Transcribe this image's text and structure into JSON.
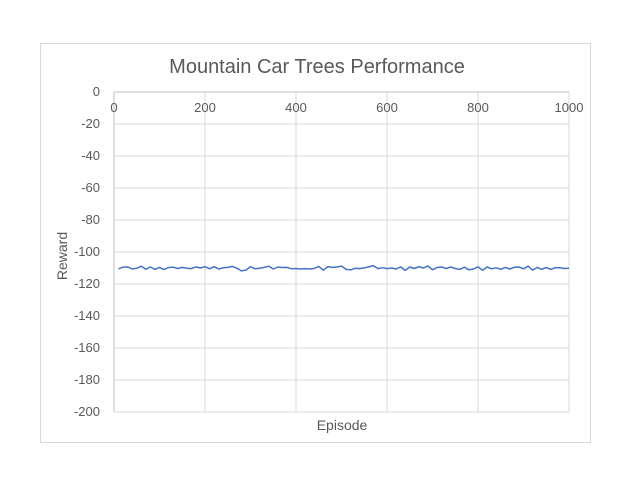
{
  "chart_data": {
    "type": "line",
    "title": "Mountain Car Trees Performance",
    "xlabel": "Episode",
    "ylabel": "Reward",
    "xlim": [
      0,
      1000
    ],
    "ylim": [
      -200,
      0
    ],
    "xticks": [
      0,
      200,
      400,
      600,
      800,
      1000
    ],
    "yticks": [
      0,
      -20,
      -40,
      -60,
      -80,
      -100,
      -120,
      -140,
      -160,
      -180,
      -200
    ],
    "x_axis_position": "top",
    "grid": true,
    "legend": "none",
    "series": [
      {
        "color": "#4472c4",
        "x": [
          10,
          20,
          30,
          40,
          50,
          60,
          70,
          80,
          90,
          100,
          110,
          120,
          130,
          140,
          150,
          160,
          170,
          180,
          190,
          200,
          210,
          220,
          230,
          240,
          250,
          260,
          270,
          280,
          290,
          300,
          310,
          320,
          330,
          340,
          350,
          360,
          370,
          380,
          390,
          400,
          410,
          420,
          430,
          440,
          450,
          460,
          470,
          480,
          490,
          500,
          510,
          520,
          530,
          540,
          550,
          560,
          570,
          580,
          590,
          600,
          610,
          620,
          630,
          640,
          650,
          660,
          670,
          680,
          690,
          700,
          710,
          720,
          730,
          740,
          750,
          760,
          770,
          780,
          790,
          800,
          810,
          820,
          830,
          840,
          850,
          860,
          870,
          880,
          890,
          900,
          910,
          920,
          930,
          940,
          950,
          960,
          970,
          980,
          990,
          1000
        ],
        "y": [
          -110.5,
          -109.5,
          -109.3,
          -110.6,
          -110.2,
          -108.9,
          -110.8,
          -109.4,
          -110.9,
          -109.6,
          -111.0,
          -109.7,
          -109.5,
          -110.3,
          -109.6,
          -110.1,
          -110.4,
          -109.3,
          -110.0,
          -109.2,
          -110.5,
          -109.1,
          -110.6,
          -109.9,
          -109.6,
          -109.0,
          -110.1,
          -111.8,
          -111.3,
          -109.2,
          -110.5,
          -110.1,
          -109.6,
          -108.9,
          -110.6,
          -109.4,
          -109.7,
          -109.6,
          -110.5,
          -110.3,
          -110.6,
          -110.4,
          -110.6,
          -110.3,
          -109.0,
          -111.4,
          -109.1,
          -109.6,
          -109.4,
          -108.8,
          -110.9,
          -111.2,
          -110.2,
          -110.4,
          -109.9,
          -109.3,
          -108.5,
          -110.4,
          -109.8,
          -110.4,
          -110.0,
          -110.6,
          -109.3,
          -111.5,
          -109.4,
          -110.3,
          -109.2,
          -110.0,
          -108.7,
          -111.1,
          -109.7,
          -109.4,
          -110.3,
          -109.4,
          -110.3,
          -110.9,
          -109.5,
          -111.1,
          -110.6,
          -109.3,
          -111.4,
          -109.4,
          -110.5,
          -109.9,
          -110.8,
          -109.6,
          -110.6,
          -109.5,
          -109.4,
          -110.5,
          -108.9,
          -111.3,
          -109.6,
          -110.8,
          -109.7,
          -110.9,
          -109.8,
          -109.9,
          -110.3,
          -110.2
        ]
      }
    ]
  }
}
